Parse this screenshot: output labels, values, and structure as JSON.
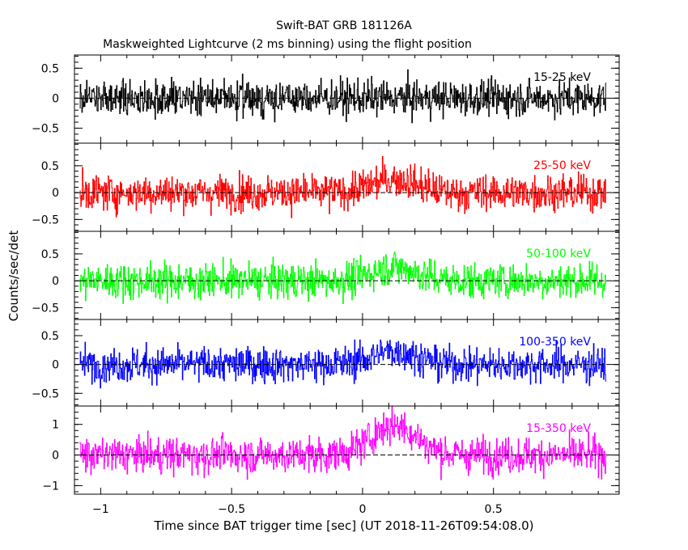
{
  "chart_data": {
    "type": "line",
    "title": "Swift-BAT GRB 181126A",
    "subtitle": "Maskweighted Lightcurve (2 ms binning) using the flight position",
    "xlabel": "Time since BAT trigger time [sec] (UT 2018-11-26T09:54:08.0)",
    "ylabel": "Counts/sec/det",
    "xlim": [
      -1.1,
      0.98
    ],
    "x_ticks": [
      -1,
      -0.5,
      0,
      0.5
    ],
    "x_tick_labels": [
      "−1",
      "−0.5",
      "0",
      "0.5"
    ],
    "data_x_range": [
      -1.08,
      0.93
    ],
    "panels": [
      {
        "name": "15-25 keV",
        "color": "#000000",
        "ylim": [
          -0.75,
          0.72
        ],
        "yticks": [
          -0.5,
          0,
          0.5
        ],
        "ytick_labels": [
          "−0.5",
          "0",
          "0.5"
        ]
      },
      {
        "name": "25-50 keV",
        "color": "#ff0000",
        "ylim": [
          -0.72,
          0.92
        ],
        "yticks": [
          -0.5,
          0,
          0.5
        ],
        "ytick_labels": [
          "−0.5",
          "0",
          "0.5"
        ]
      },
      {
        "name": "50-100 keV",
        "color": "#00ff00",
        "ylim": [
          -0.72,
          0.92
        ],
        "yticks": [
          -0.5,
          0,
          0.5
        ],
        "ytick_labels": [
          "−0.5",
          "0",
          "0.5"
        ]
      },
      {
        "name": "100-350 keV",
        "color": "#0000ff",
        "ylim": [
          -0.72,
          0.78
        ],
        "yticks": [
          -0.5,
          0,
          0.5
        ],
        "ytick_labels": [
          "−0.5",
          "0",
          "0.5"
        ]
      },
      {
        "name": "15-350 keV",
        "color": "#ff00ff",
        "ylim": [
          -1.28,
          1.6
        ],
        "yticks": [
          -1,
          0,
          1
        ],
        "ytick_labels": [
          "−1",
          "0",
          "1"
        ]
      }
    ]
  }
}
